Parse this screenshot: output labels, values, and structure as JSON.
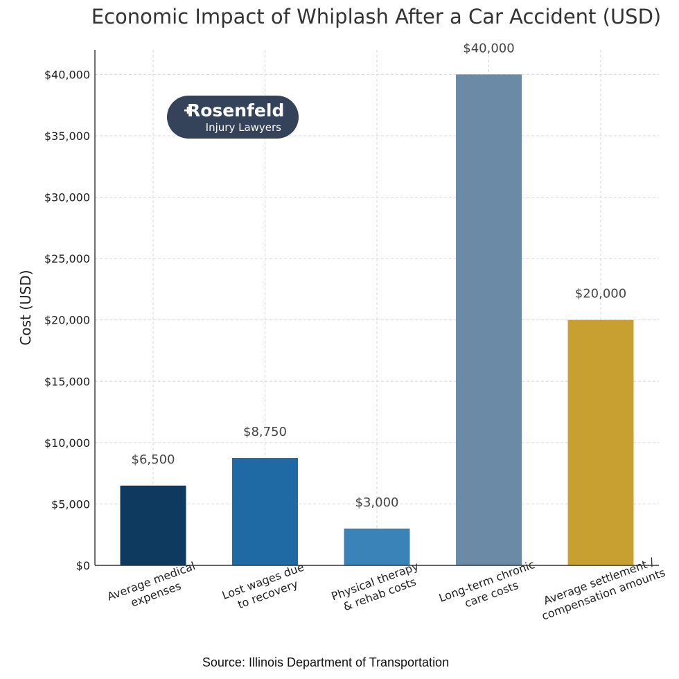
{
  "chart_data": {
    "type": "bar",
    "title": "Economic Impact of Whiplash After a Car Accident (USD)",
    "xlabel": "",
    "ylabel": "Cost (USD)",
    "categories": [
      [
        "Average medical",
        "expenses"
      ],
      [
        "Lost wages due",
        "to recovery"
      ],
      [
        "Physical therapy",
        "& rehab costs"
      ],
      [
        "Long-term chronic",
        "care costs"
      ],
      [
        "Average settlement /",
        "compensation amounts"
      ]
    ],
    "values": [
      6500,
      8750,
      3000,
      40000,
      20000
    ],
    "value_labels": [
      "$6,500",
      "$8,750",
      "$3,000",
      "$40,000",
      "$20,000"
    ],
    "colors": [
      "#0d3a5e",
      "#1f6aa5",
      "#3a83b8",
      "#6a8aa5",
      "#c8a032"
    ],
    "ylim": [
      0,
      42000
    ],
    "yticks": [
      0,
      5000,
      10000,
      15000,
      20000,
      25000,
      30000,
      35000,
      40000
    ],
    "ytick_labels": [
      "$0",
      "$5,000",
      "$10,000",
      "$15,000",
      "$20,000",
      "$25,000",
      "$30,000",
      "$35,000",
      "$40,000"
    ],
    "grid": true,
    "legend": "none"
  },
  "logo": {
    "word": "Rosenfeld",
    "tagline": "Injury Lawyers",
    "background": "#34435a",
    "icon": "plus-r-logo-icon"
  },
  "source": "Source: Illinois Department of Transportation"
}
